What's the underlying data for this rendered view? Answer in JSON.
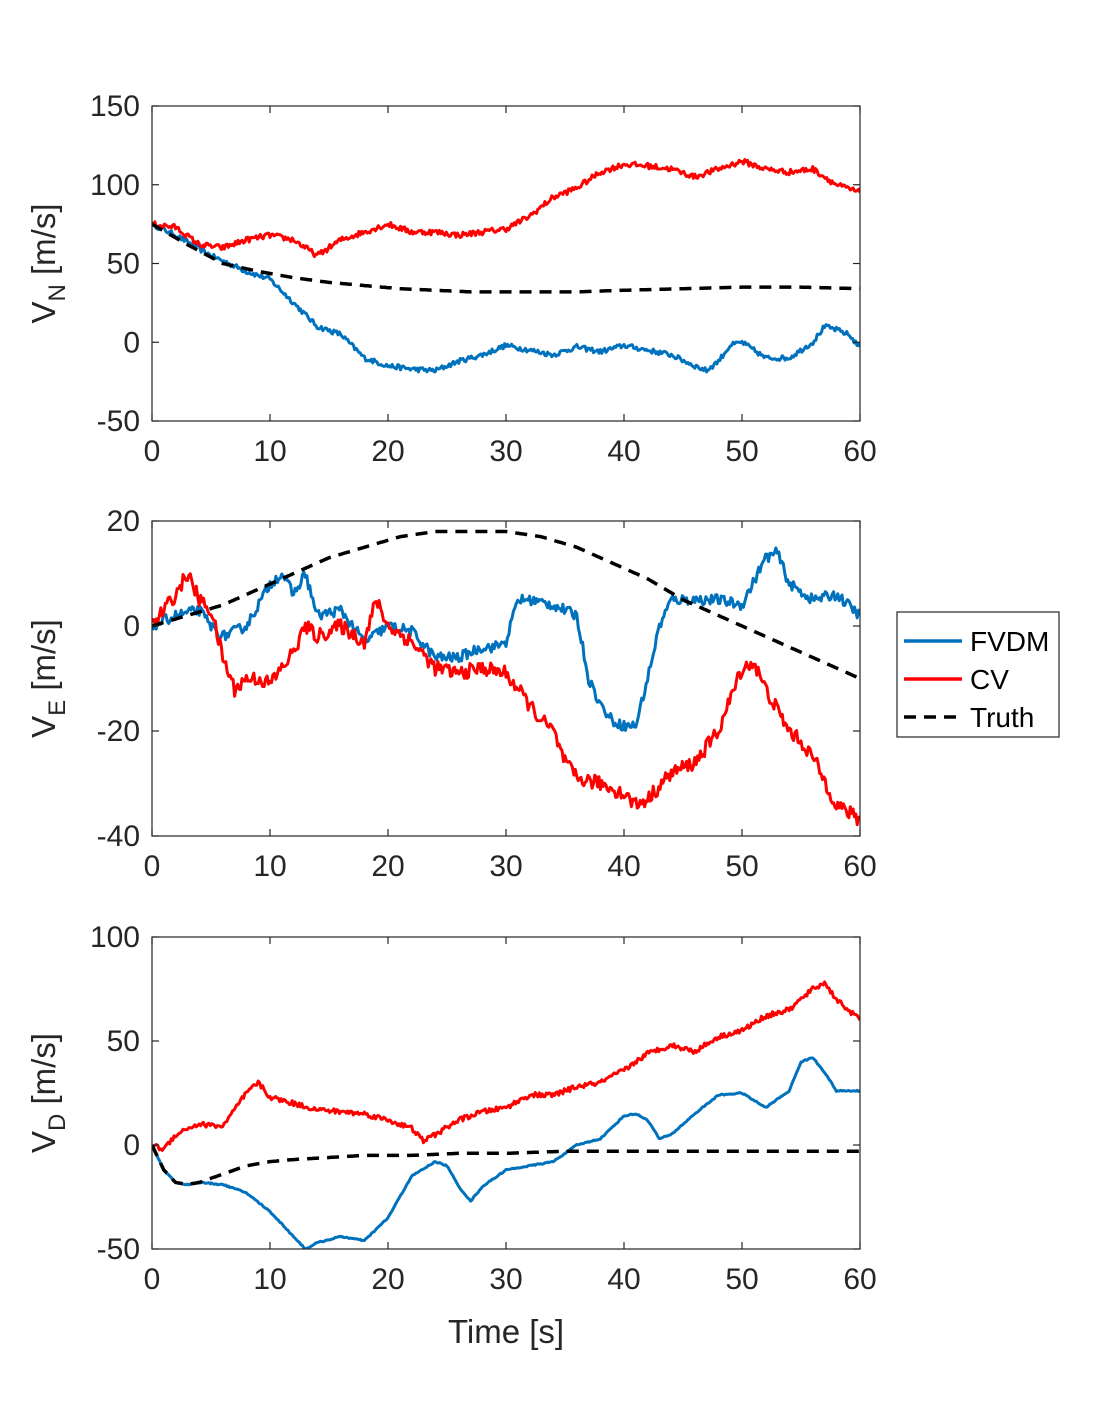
{
  "colors": {
    "FVDM": "#0072BD",
    "CV": "#FF0000",
    "Truth": "#000000"
  },
  "legend": [
    "FVDM",
    "CV",
    "Truth"
  ],
  "legend_placement": "right",
  "chart_data": [
    {
      "type": "line",
      "ylabel": {
        "base": "V",
        "sub": "N",
        "rest": " [m/s]"
      },
      "xlabel": "",
      "xlim": [
        0,
        60
      ],
      "ylim": [
        -50,
        150
      ],
      "xticks": [
        "0",
        "10",
        "20",
        "30",
        "40",
        "50",
        "60"
      ],
      "yticks": [
        "-50",
        "0",
        "50",
        "100",
        "150"
      ],
      "series": [
        {
          "name": "FVDM",
          "noise": 1.6,
          "x": [
            0,
            2,
            5,
            8,
            10,
            12,
            14,
            16,
            18,
            20,
            22,
            24,
            26,
            28,
            30,
            32,
            34,
            36,
            38,
            40,
            42,
            44,
            46,
            47,
            48,
            49,
            50,
            51,
            52,
            54,
            56,
            57,
            58,
            59,
            60
          ],
          "y": [
            75,
            68,
            55,
            45,
            40,
            25,
            10,
            5,
            -10,
            -15,
            -17,
            -18,
            -12,
            -8,
            -2,
            -5,
            -8,
            -3,
            -6,
            -2,
            -5,
            -8,
            -15,
            -18,
            -12,
            -2,
            0,
            -5,
            -10,
            -10,
            0,
            10,
            8,
            5,
            -3
          ]
        },
        {
          "name": "CV",
          "noise": 1.8,
          "x": [
            0,
            2,
            4,
            6,
            8,
            10,
            12,
            14,
            16,
            18,
            20,
            22,
            24,
            26,
            28,
            30,
            32,
            34,
            36,
            38,
            40,
            42,
            44,
            46,
            48,
            50,
            52,
            54,
            56,
            58,
            60
          ],
          "y": [
            75,
            73,
            62,
            60,
            65,
            68,
            65,
            55,
            65,
            70,
            75,
            70,
            70,
            68,
            70,
            72,
            80,
            92,
            98,
            108,
            113,
            112,
            110,
            105,
            110,
            115,
            110,
            108,
            110,
            100,
            95
          ]
        },
        {
          "name": "Truth",
          "noise": 0,
          "x": [
            0,
            3,
            6,
            9,
            12,
            15,
            18,
            21,
            24,
            27,
            30,
            33,
            36,
            40,
            45,
            50,
            55,
            60
          ],
          "y": [
            75,
            62,
            50,
            45,
            41,
            38,
            36,
            34,
            33,
            32,
            32,
            32,
            32,
            33,
            34,
            35,
            35,
            34
          ]
        }
      ]
    },
    {
      "type": "line",
      "ylabel": {
        "base": "V",
        "sub": "E",
        "rest": " [m/s]"
      },
      "xlabel": "",
      "xlim": [
        0,
        60
      ],
      "ylim": [
        -40,
        20
      ],
      "xticks": [
        "0",
        "10",
        "20",
        "30",
        "40",
        "50",
        "60"
      ],
      "yticks": [
        "-40",
        "-20",
        "0",
        "20"
      ],
      "series": [
        {
          "name": "FVDM",
          "noise": 1.0,
          "x": [
            0,
            2,
            4,
            5,
            6,
            8,
            10,
            11,
            12,
            13,
            14,
            16,
            18,
            20,
            22,
            24,
            26,
            28,
            29,
            30,
            31,
            32,
            34,
            36,
            37,
            38,
            39,
            40,
            41,
            42,
            43,
            44,
            46,
            48,
            50,
            52,
            53,
            54,
            56,
            58,
            60
          ],
          "y": [
            0,
            2,
            3,
            0,
            -2,
            0,
            8,
            10,
            6,
            10,
            2,
            3,
            -3,
            0,
            -1,
            -6,
            -6,
            -4,
            -4,
            -3,
            5,
            5,
            4,
            2,
            -10,
            -15,
            -18,
            -19,
            -19,
            -10,
            0,
            5,
            5,
            5,
            4,
            13,
            14,
            8,
            5,
            6,
            2
          ]
        },
        {
          "name": "CV",
          "noise": 1.4,
          "x": [
            0,
            1,
            2,
            3,
            4,
            5,
            6,
            7,
            8,
            9,
            10,
            11,
            12,
            13,
            14,
            16,
            18,
            19,
            20,
            22,
            24,
            26,
            28,
            30,
            31,
            32,
            33,
            34,
            35,
            36,
            38,
            40,
            41,
            42,
            44,
            46,
            48,
            50,
            51,
            52,
            54,
            55,
            56,
            58,
            60
          ],
          "y": [
            0,
            3,
            6,
            10,
            5,
            3,
            -6,
            -12,
            -10,
            -10,
            -11,
            -8,
            -5,
            0,
            -2,
            0,
            -3,
            5,
            0,
            -3,
            -8,
            -9,
            -8,
            -9,
            -12,
            -15,
            -18,
            -20,
            -26,
            -29,
            -30,
            -32,
            -34,
            -33,
            -28,
            -26,
            -20,
            -8,
            -7,
            -12,
            -20,
            -22,
            -25,
            -34,
            -37
          ]
        },
        {
          "name": "Truth",
          "noise": 0,
          "x": [
            0,
            3,
            6,
            9,
            12,
            15,
            18,
            21,
            24,
            27,
            30,
            33,
            36,
            39,
            42,
            45,
            48,
            51,
            54,
            57,
            60
          ],
          "y": [
            0,
            2,
            4,
            7,
            10,
            13,
            15,
            17,
            18,
            18,
            18,
            17,
            15,
            12,
            9,
            5,
            2,
            -1,
            -4,
            -7,
            -10
          ]
        }
      ]
    },
    {
      "type": "line",
      "ylabel": {
        "base": "V",
        "sub": "D",
        "rest": " [m/s]"
      },
      "xlabel": "Time [s]",
      "xlim": [
        0,
        60
      ],
      "ylim": [
        -50,
        100
      ],
      "xticks": [
        "0",
        "10",
        "20",
        "30",
        "40",
        "50",
        "60"
      ],
      "yticks": [
        "-50",
        "0",
        "50",
        "100"
      ],
      "series": [
        {
          "name": "FVDM",
          "noise": 0.3,
          "x": [
            0,
            1,
            2,
            3,
            4,
            6,
            8,
            10,
            12,
            13,
            14,
            16,
            18,
            20,
            22,
            24,
            25,
            26,
            27,
            28,
            30,
            32,
            34,
            36,
            38,
            40,
            41,
            42,
            43,
            44,
            46,
            48,
            50,
            52,
            54,
            55,
            56,
            57,
            58,
            60
          ],
          "y": [
            0,
            -12,
            -18,
            -19,
            -18,
            -19,
            -23,
            -32,
            -44,
            -50,
            -47,
            -44,
            -46,
            -35,
            -15,
            -8,
            -10,
            -20,
            -27,
            -20,
            -12,
            -10,
            -8,
            0,
            3,
            14,
            15,
            12,
            3,
            5,
            15,
            24,
            25,
            18,
            26,
            40,
            42,
            35,
            26,
            26
          ]
        },
        {
          "name": "CV",
          "noise": 1.2,
          "x": [
            0,
            1,
            2,
            3,
            4,
            6,
            8,
            9,
            10,
            12,
            14,
            16,
            18,
            20,
            22,
            23,
            24,
            26,
            28,
            30,
            32,
            34,
            36,
            38,
            40,
            42,
            44,
            46,
            48,
            50,
            52,
            54,
            55,
            56,
            57,
            58,
            59,
            60
          ],
          "y": [
            0,
            -2,
            5,
            8,
            10,
            9,
            25,
            30,
            23,
            20,
            17,
            16,
            15,
            12,
            8,
            2,
            5,
            12,
            16,
            18,
            24,
            24,
            28,
            30,
            36,
            44,
            48,
            45,
            52,
            55,
            62,
            65,
            70,
            75,
            78,
            70,
            65,
            60
          ]
        },
        {
          "name": "Truth",
          "noise": 0,
          "x": [
            0,
            1,
            2,
            3,
            4,
            6,
            8,
            10,
            12,
            15,
            18,
            22,
            26,
            30,
            35,
            40,
            45,
            50,
            55,
            60
          ],
          "y": [
            0,
            -12,
            -18,
            -19,
            -18,
            -14,
            -10,
            -8,
            -7,
            -6,
            -5,
            -5,
            -4,
            -4,
            -3,
            -3,
            -3,
            -3,
            -3,
            -3
          ]
        }
      ]
    }
  ]
}
